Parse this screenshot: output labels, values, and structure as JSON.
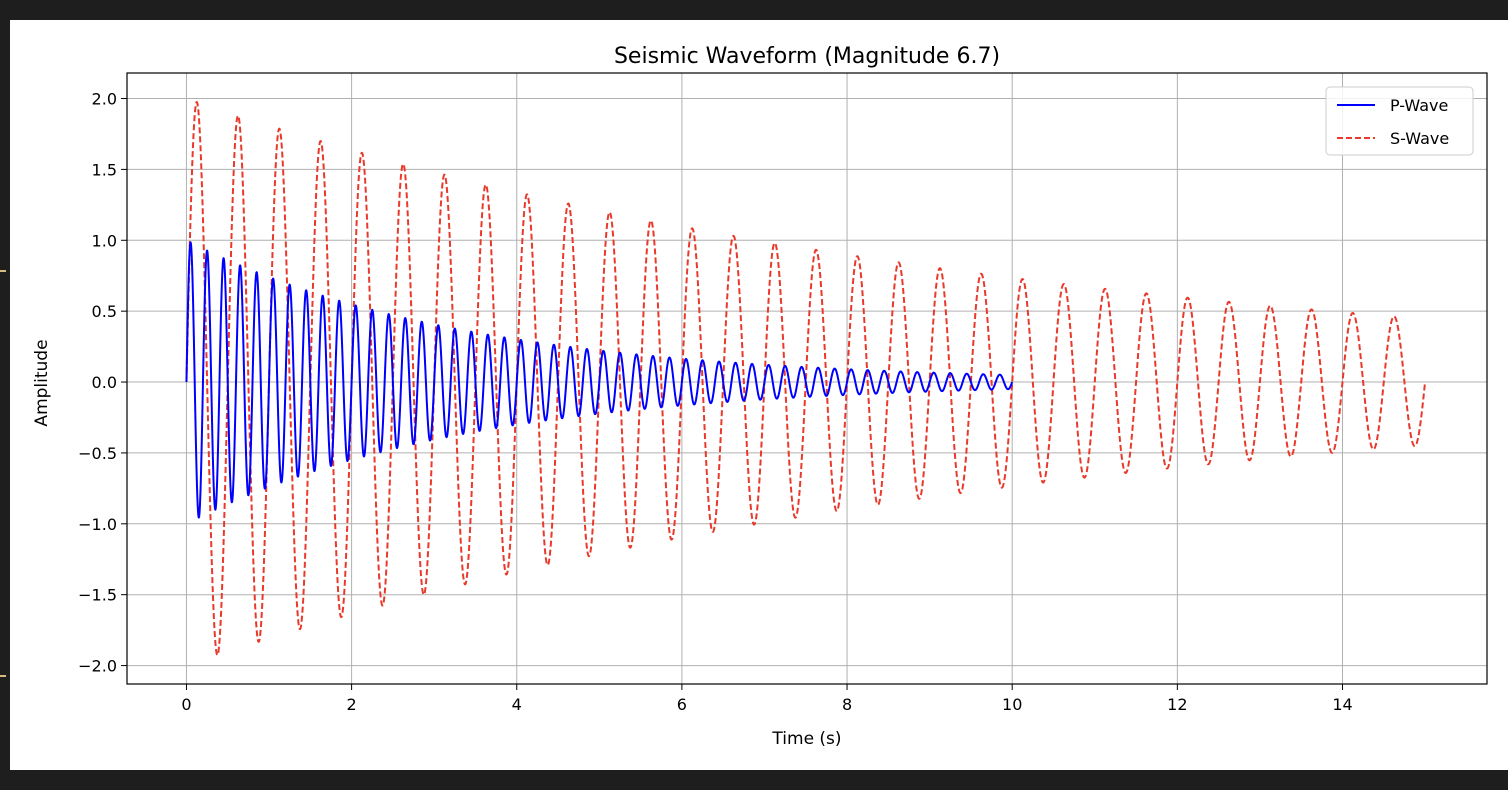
{
  "chart_data": {
    "type": "line",
    "title": "Seismic Waveform (Magnitude 6.7)",
    "xlabel": "Time (s)",
    "ylabel": "Amplitude",
    "xlim": [
      -0.72,
      15.75
    ],
    "ylim": [
      -2.13,
      2.18
    ],
    "xticks": [
      0,
      2,
      4,
      6,
      8,
      10,
      12,
      14
    ],
    "yticks": [
      -2.0,
      -1.5,
      -1.0,
      -0.5,
      0.0,
      0.5,
      1.0,
      1.5,
      2.0
    ],
    "ytick_labels": [
      "−2.0",
      "−1.5",
      "−1.0",
      "−0.5",
      "0.0",
      "0.5",
      "1.0",
      "1.5",
      "2.0"
    ],
    "grid": true,
    "legend_position": "top-right",
    "series": [
      {
        "name": "P-Wave",
        "color": "#0000ff",
        "line_style": "solid",
        "formula": "amplitude * exp(-decay * t) * sin(2 * pi * frequency * t)",
        "t_start": 0,
        "t_end": 10,
        "amplitude": 1.0,
        "frequency": 5,
        "decay": 0.3
      },
      {
        "name": "S-Wave",
        "color": "#e8392b",
        "line_style": "dashed",
        "formula": "amplitude * exp(-decay * t) * sin(2 * pi * frequency * t)",
        "t_start": 0,
        "t_end": 15,
        "amplitude": 2.0,
        "frequency": 2,
        "decay": 0.1
      }
    ]
  }
}
